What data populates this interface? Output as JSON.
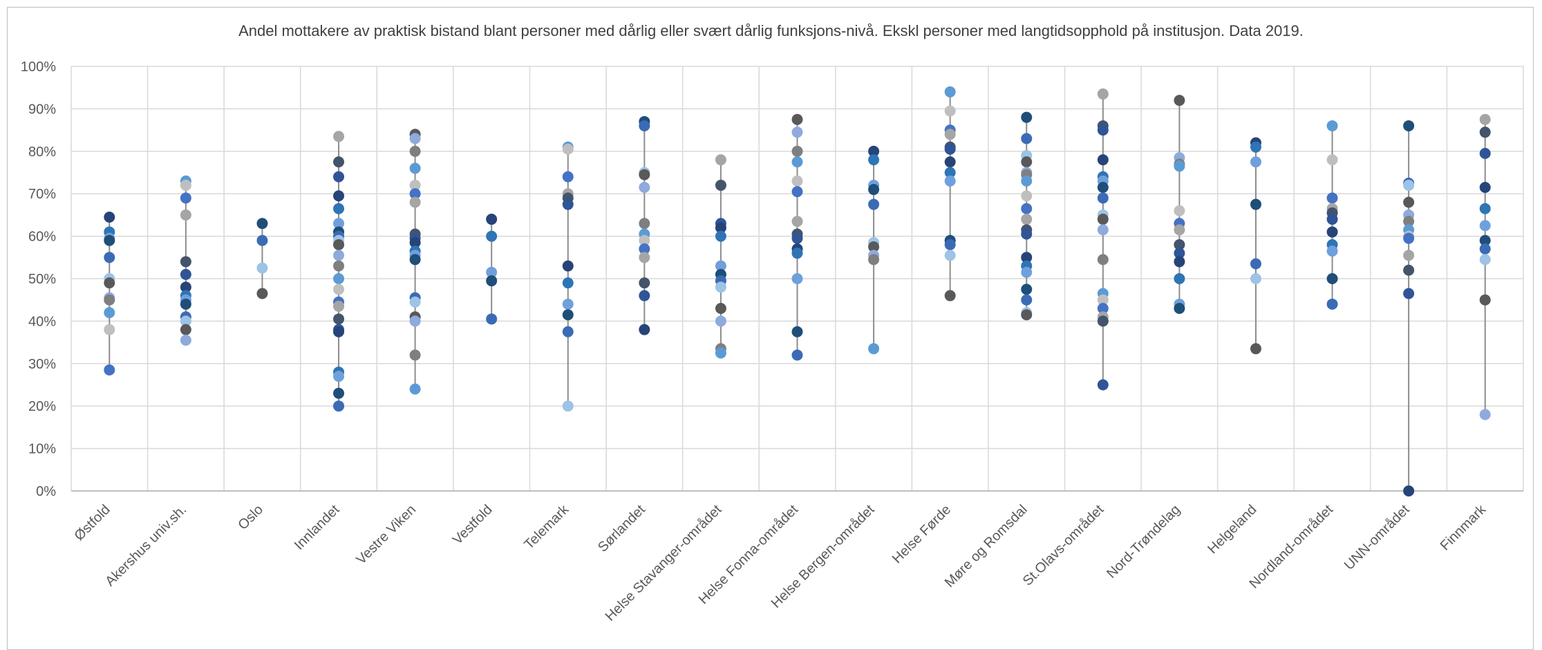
{
  "chart_data": {
    "type": "scatter",
    "title": "Andel mottakere av praktisk bistand blant personer med dårlig eller svært dårlig funksjons-nivå. Ekskl personer med langtidsopphold på institusjon. Data 2019.",
    "xlabel": "",
    "ylabel": "",
    "ylim": [
      0,
      100
    ],
    "y_ticks": [
      "0%",
      "10%",
      "20%",
      "30%",
      "40%",
      "50%",
      "60%",
      "70%",
      "80%",
      "90%",
      "100%"
    ],
    "grid": true,
    "categories": [
      "Østfold",
      "Akershus univ.sh.",
      "Oslo",
      "Innlandet",
      "Vestre Viken",
      "Vestfold",
      "Telemark",
      "Sørlandet",
      "Helse Stavanger-området",
      "Helse Fonna-området",
      "Helse Bergen-området",
      "Helse Førde",
      "Møre og Romsdal",
      "St.Olavs-området",
      "Nord-Trøndelag",
      "Helgeland",
      "Nordland-området",
      "UNN-området",
      "Finnmark"
    ],
    "points": [
      [
        64.5,
        61,
        59.5,
        59,
        55,
        50,
        49,
        45.5,
        45,
        42,
        38,
        28.5
      ],
      [
        73,
        72,
        69,
        65,
        54,
        51,
        48,
        46,
        45,
        44,
        41,
        40,
        38,
        35.5
      ],
      [
        63,
        59,
        52.5,
        46.5
      ],
      [
        83.5,
        77.5,
        74,
        69.5,
        66.5,
        63,
        61,
        60,
        59,
        58,
        55.5,
        53,
        50,
        47.5,
        44.5,
        43.5,
        40.5,
        38,
        37.5,
        28,
        27,
        23,
        20
      ],
      [
        84,
        83,
        80,
        76,
        72,
        70,
        68,
        60.5,
        59.5,
        58.5,
        56.5,
        55.5,
        54.5,
        45.5,
        44.5,
        41,
        40,
        32,
        24
      ],
      [
        64,
        60,
        51.5,
        49.5,
        40.5
      ],
      [
        81,
        80.5,
        74,
        70,
        69,
        67.5,
        53,
        49,
        44,
        41.5,
        37.5,
        20
      ],
      [
        87,
        86,
        75,
        74.5,
        71.5,
        63,
        60.5,
        59,
        57,
        55,
        49,
        46,
        38
      ],
      [
        78,
        72,
        63,
        62,
        60,
        53,
        51,
        49.5,
        48,
        43,
        40,
        33.5,
        32.5
      ],
      [
        87.5,
        84.5,
        80,
        77.5,
        73,
        70.5,
        63.5,
        60.5,
        59.5,
        57,
        56,
        50,
        37.5,
        32
      ],
      [
        80,
        78,
        72,
        71,
        67.5,
        58.5,
        57.5,
        55.5,
        54.5,
        33.5
      ],
      [
        94,
        89.5,
        85,
        84,
        81,
        80.5,
        77.5,
        75,
        73,
        59,
        58,
        55.5,
        46
      ],
      [
        88,
        83,
        79,
        77.5,
        75,
        74.5,
        73,
        69.5,
        66.5,
        64,
        61.5,
        60.5,
        55,
        53,
        51.5,
        47.5,
        45,
        42,
        41.5
      ],
      [
        93.5,
        86,
        85,
        78,
        74,
        73,
        71.5,
        69,
        65,
        64,
        61.5,
        54.5,
        46.5,
        45,
        43,
        41,
        40,
        25
      ],
      [
        92,
        78.5,
        77,
        76.5,
        66,
        63,
        61.5,
        58,
        56,
        54,
        50,
        44,
        43
      ],
      [
        82,
        81,
        77.5,
        67.5,
        53.5,
        50,
        33.5
      ],
      [
        86,
        78,
        69,
        66.5,
        65.5,
        64,
        61,
        58,
        56.5,
        50,
        44
      ],
      [
        86,
        72.5,
        72,
        68,
        65,
        63.5,
        61.5,
        60,
        59.5,
        55.5,
        52,
        46.5,
        0
      ],
      [
        87.5,
        84.5,
        79.5,
        71.5,
        66.5,
        62.5,
        59,
        57,
        54.5,
        45,
        18
      ]
    ],
    "point_colors": [
      "#264478",
      "#44546A",
      "#4472C4",
      "#5B9BD5",
      "#8FAADC",
      "#9DC3E6",
      "#1F4E79",
      "#2E75B6",
      "#2F5597",
      "#A5A5A5",
      "#BFBFBF",
      "#7F7F7F",
      "#595959",
      "#3B6BB5",
      "#6FA0DC"
    ],
    "line_color": "#8c8c8c",
    "grid_color": "#d9d9d9"
  }
}
